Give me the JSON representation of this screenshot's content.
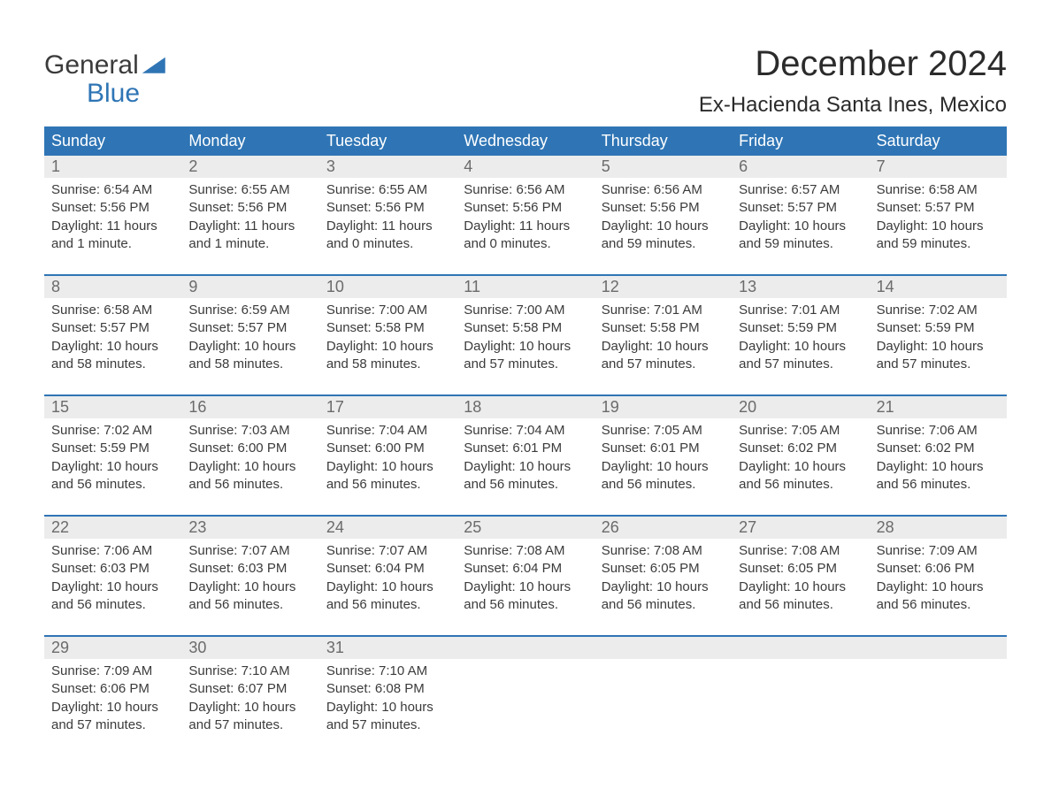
{
  "brand": {
    "word1": "General",
    "word2": "Blue",
    "accent_color": "#2f75b5"
  },
  "title": "December 2024",
  "location": "Ex-Hacienda Santa Ines, Mexico",
  "colors": {
    "header_bg": "#2f75b5",
    "header_text": "#ffffff",
    "daynum_bg": "#ececec",
    "daynum_text": "#6b6b6b",
    "body_text": "#3b3b3b",
    "week_divider": "#2f75b5",
    "page_bg": "#ffffff"
  },
  "typography": {
    "title_fontsize": 40,
    "location_fontsize": 24,
    "dow_fontsize": 18,
    "daynum_fontsize": 18,
    "body_fontsize": 15
  },
  "days_of_week": [
    "Sunday",
    "Monday",
    "Tuesday",
    "Wednesday",
    "Thursday",
    "Friday",
    "Saturday"
  ],
  "weeks": [
    [
      {
        "n": "1",
        "sunrise": "Sunrise: 6:54 AM",
        "sunset": "Sunset: 5:56 PM",
        "d1": "Daylight: 11 hours",
        "d2": "and 1 minute."
      },
      {
        "n": "2",
        "sunrise": "Sunrise: 6:55 AM",
        "sunset": "Sunset: 5:56 PM",
        "d1": "Daylight: 11 hours",
        "d2": "and 1 minute."
      },
      {
        "n": "3",
        "sunrise": "Sunrise: 6:55 AM",
        "sunset": "Sunset: 5:56 PM",
        "d1": "Daylight: 11 hours",
        "d2": "and 0 minutes."
      },
      {
        "n": "4",
        "sunrise": "Sunrise: 6:56 AM",
        "sunset": "Sunset: 5:56 PM",
        "d1": "Daylight: 11 hours",
        "d2": "and 0 minutes."
      },
      {
        "n": "5",
        "sunrise": "Sunrise: 6:56 AM",
        "sunset": "Sunset: 5:56 PM",
        "d1": "Daylight: 10 hours",
        "d2": "and 59 minutes."
      },
      {
        "n": "6",
        "sunrise": "Sunrise: 6:57 AM",
        "sunset": "Sunset: 5:57 PM",
        "d1": "Daylight: 10 hours",
        "d2": "and 59 minutes."
      },
      {
        "n": "7",
        "sunrise": "Sunrise: 6:58 AM",
        "sunset": "Sunset: 5:57 PM",
        "d1": "Daylight: 10 hours",
        "d2": "and 59 minutes."
      }
    ],
    [
      {
        "n": "8",
        "sunrise": "Sunrise: 6:58 AM",
        "sunset": "Sunset: 5:57 PM",
        "d1": "Daylight: 10 hours",
        "d2": "and 58 minutes."
      },
      {
        "n": "9",
        "sunrise": "Sunrise: 6:59 AM",
        "sunset": "Sunset: 5:57 PM",
        "d1": "Daylight: 10 hours",
        "d2": "and 58 minutes."
      },
      {
        "n": "10",
        "sunrise": "Sunrise: 7:00 AM",
        "sunset": "Sunset: 5:58 PM",
        "d1": "Daylight: 10 hours",
        "d2": "and 58 minutes."
      },
      {
        "n": "11",
        "sunrise": "Sunrise: 7:00 AM",
        "sunset": "Sunset: 5:58 PM",
        "d1": "Daylight: 10 hours",
        "d2": "and 57 minutes."
      },
      {
        "n": "12",
        "sunrise": "Sunrise: 7:01 AM",
        "sunset": "Sunset: 5:58 PM",
        "d1": "Daylight: 10 hours",
        "d2": "and 57 minutes."
      },
      {
        "n": "13",
        "sunrise": "Sunrise: 7:01 AM",
        "sunset": "Sunset: 5:59 PM",
        "d1": "Daylight: 10 hours",
        "d2": "and 57 minutes."
      },
      {
        "n": "14",
        "sunrise": "Sunrise: 7:02 AM",
        "sunset": "Sunset: 5:59 PM",
        "d1": "Daylight: 10 hours",
        "d2": "and 57 minutes."
      }
    ],
    [
      {
        "n": "15",
        "sunrise": "Sunrise: 7:02 AM",
        "sunset": "Sunset: 5:59 PM",
        "d1": "Daylight: 10 hours",
        "d2": "and 56 minutes."
      },
      {
        "n": "16",
        "sunrise": "Sunrise: 7:03 AM",
        "sunset": "Sunset: 6:00 PM",
        "d1": "Daylight: 10 hours",
        "d2": "and 56 minutes."
      },
      {
        "n": "17",
        "sunrise": "Sunrise: 7:04 AM",
        "sunset": "Sunset: 6:00 PM",
        "d1": "Daylight: 10 hours",
        "d2": "and 56 minutes."
      },
      {
        "n": "18",
        "sunrise": "Sunrise: 7:04 AM",
        "sunset": "Sunset: 6:01 PM",
        "d1": "Daylight: 10 hours",
        "d2": "and 56 minutes."
      },
      {
        "n": "19",
        "sunrise": "Sunrise: 7:05 AM",
        "sunset": "Sunset: 6:01 PM",
        "d1": "Daylight: 10 hours",
        "d2": "and 56 minutes."
      },
      {
        "n": "20",
        "sunrise": "Sunrise: 7:05 AM",
        "sunset": "Sunset: 6:02 PM",
        "d1": "Daylight: 10 hours",
        "d2": "and 56 minutes."
      },
      {
        "n": "21",
        "sunrise": "Sunrise: 7:06 AM",
        "sunset": "Sunset: 6:02 PM",
        "d1": "Daylight: 10 hours",
        "d2": "and 56 minutes."
      }
    ],
    [
      {
        "n": "22",
        "sunrise": "Sunrise: 7:06 AM",
        "sunset": "Sunset: 6:03 PM",
        "d1": "Daylight: 10 hours",
        "d2": "and 56 minutes."
      },
      {
        "n": "23",
        "sunrise": "Sunrise: 7:07 AM",
        "sunset": "Sunset: 6:03 PM",
        "d1": "Daylight: 10 hours",
        "d2": "and 56 minutes."
      },
      {
        "n": "24",
        "sunrise": "Sunrise: 7:07 AM",
        "sunset": "Sunset: 6:04 PM",
        "d1": "Daylight: 10 hours",
        "d2": "and 56 minutes."
      },
      {
        "n": "25",
        "sunrise": "Sunrise: 7:08 AM",
        "sunset": "Sunset: 6:04 PM",
        "d1": "Daylight: 10 hours",
        "d2": "and 56 minutes."
      },
      {
        "n": "26",
        "sunrise": "Sunrise: 7:08 AM",
        "sunset": "Sunset: 6:05 PM",
        "d1": "Daylight: 10 hours",
        "d2": "and 56 minutes."
      },
      {
        "n": "27",
        "sunrise": "Sunrise: 7:08 AM",
        "sunset": "Sunset: 6:05 PM",
        "d1": "Daylight: 10 hours",
        "d2": "and 56 minutes."
      },
      {
        "n": "28",
        "sunrise": "Sunrise: 7:09 AM",
        "sunset": "Sunset: 6:06 PM",
        "d1": "Daylight: 10 hours",
        "d2": "and 56 minutes."
      }
    ],
    [
      {
        "n": "29",
        "sunrise": "Sunrise: 7:09 AM",
        "sunset": "Sunset: 6:06 PM",
        "d1": "Daylight: 10 hours",
        "d2": "and 57 minutes."
      },
      {
        "n": "30",
        "sunrise": "Sunrise: 7:10 AM",
        "sunset": "Sunset: 6:07 PM",
        "d1": "Daylight: 10 hours",
        "d2": "and 57 minutes."
      },
      {
        "n": "31",
        "sunrise": "Sunrise: 7:10 AM",
        "sunset": "Sunset: 6:08 PM",
        "d1": "Daylight: 10 hours",
        "d2": "and 57 minutes."
      },
      null,
      null,
      null,
      null
    ]
  ]
}
